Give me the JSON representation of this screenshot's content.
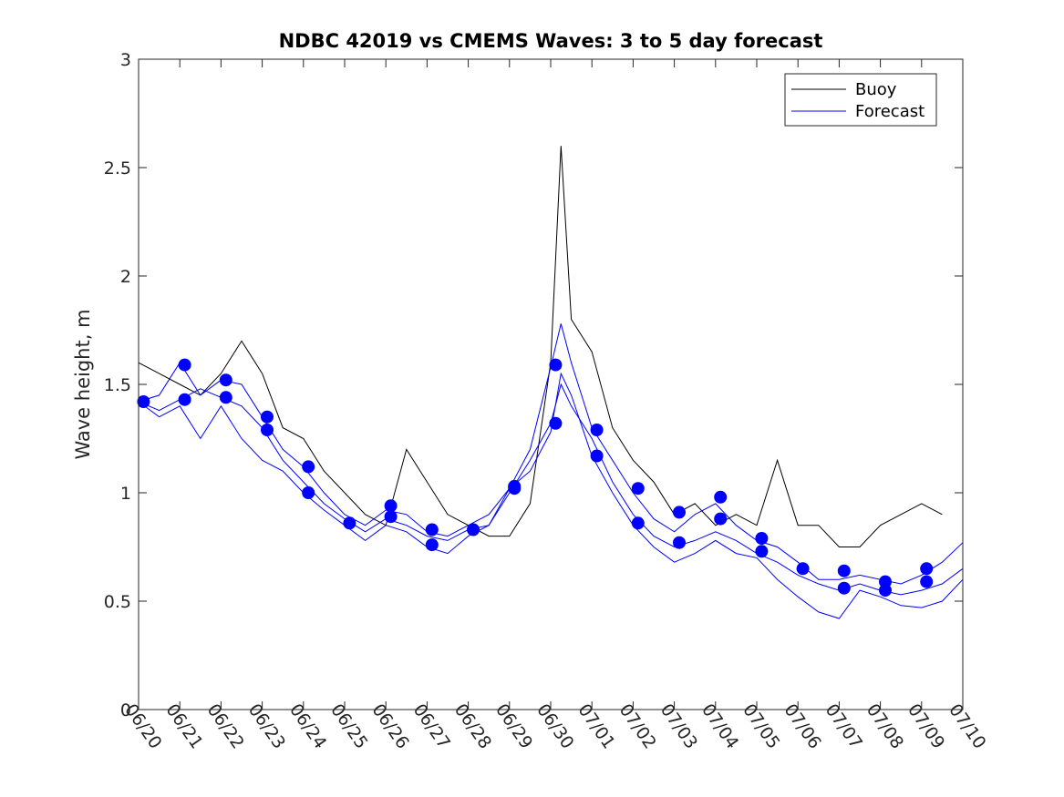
{
  "chart_data": {
    "type": "line",
    "title": "NDBC 42019 vs CMEMS Waves: 3 to 5 day forecast",
    "xlabel": "",
    "ylabel": "Wave height, m",
    "ylim": [
      0,
      3
    ],
    "yticks": [
      0,
      0.5,
      1,
      1.5,
      2,
      2.5,
      3
    ],
    "ytick_labels": [
      "0",
      "0.5",
      "1",
      "1.5",
      "2",
      "2.5",
      "3"
    ],
    "xlim": [
      "06/20",
      "07/10"
    ],
    "xtick_labels": [
      "06/20",
      "06/21",
      "06/22",
      "06/23",
      "06/24",
      "06/25",
      "06/26",
      "06/27",
      "06/28",
      "06/29",
      "06/30",
      "07/01",
      "07/02",
      "07/03",
      "07/04",
      "07/05",
      "07/06",
      "07/07",
      "07/08",
      "07/09",
      "07/10"
    ],
    "legend": {
      "position": "top-right",
      "entries": [
        "Buoy",
        "Forecast"
      ]
    },
    "colors": {
      "buoy": "#000000",
      "forecast": "#0000ff",
      "axis": "#262626"
    },
    "grid": false,
    "series": [
      {
        "name": "Buoy",
        "x": [
          "06/20",
          "06/20 12:00",
          "06/21",
          "06/21 12:00",
          "06/22",
          "06/22 12:00",
          "06/23",
          "06/23 12:00",
          "06/24",
          "06/24 12:00",
          "06/25",
          "06/25 12:00",
          "06/26",
          "06/26 12:00",
          "06/27",
          "06/27 12:00",
          "06/28",
          "06/28 12:00",
          "06/29",
          "06/29 12:00",
          "06/30",
          "06/30 06:00",
          "06/30 12:00",
          "07/01",
          "07/01 12:00",
          "07/02",
          "07/02 12:00",
          "07/03",
          "07/03 12:00",
          "07/04",
          "07/04 12:00",
          "07/05",
          "07/05 12:00",
          "07/06",
          "07/06 12:00",
          "07/07",
          "07/07 12:00",
          "07/08",
          "07/08 12:00",
          "07/09",
          "07/09 12:00"
        ],
        "values": [
          1.6,
          1.55,
          1.5,
          1.45,
          1.55,
          1.7,
          1.55,
          1.3,
          1.25,
          1.1,
          1.0,
          0.9,
          0.85,
          1.2,
          1.05,
          0.9,
          0.85,
          0.8,
          0.8,
          0.95,
          1.6,
          2.6,
          1.8,
          1.65,
          1.3,
          1.15,
          1.05,
          0.9,
          0.95,
          0.85,
          0.9,
          0.85,
          1.15,
          0.85,
          0.85,
          0.75,
          0.75,
          0.85,
          0.9,
          0.95,
          0.9
        ]
      },
      {
        "name": "Forecast",
        "x": [
          "06/20",
          "06/20 12:00",
          "06/21",
          "06/21 12:00",
          "06/22",
          "06/22 12:00",
          "06/23",
          "06/23 12:00",
          "06/24",
          "06/24 12:00",
          "06/25",
          "06/25 12:00",
          "06/26",
          "06/26 12:00",
          "06/27",
          "06/27 12:00",
          "06/28",
          "06/28 12:00",
          "06/29",
          "06/29 12:00",
          "06/30",
          "06/30 06:00",
          "06/30 12:00",
          "07/01",
          "07/01 12:00",
          "07/02",
          "07/02 12:00",
          "07/03",
          "07/03 12:00",
          "07/04",
          "07/04 12:00",
          "07/05",
          "07/05 12:00",
          "07/06",
          "07/06 12:00",
          "07/07",
          "07/07 12:00",
          "07/08",
          "07/08 12:00",
          "07/09",
          "07/09 12:00",
          "07/10"
        ],
        "values": [
          1.42,
          1.38,
          1.43,
          1.48,
          1.44,
          1.4,
          1.3,
          1.15,
          1.05,
          0.95,
          0.88,
          0.82,
          0.88,
          0.85,
          0.8,
          0.78,
          0.83,
          0.85,
          1.0,
          1.15,
          1.32,
          1.5,
          1.4,
          1.25,
          1.05,
          0.9,
          0.8,
          0.75,
          0.78,
          0.82,
          0.78,
          0.72,
          0.68,
          0.62,
          0.58,
          0.55,
          0.58,
          0.55,
          0.53,
          0.55,
          0.58,
          0.65
        ]
      },
      {
        "name": "Forecast",
        "x": [
          "06/20",
          "06/20 12:00",
          "06/21",
          "06/21 12:00",
          "06/22",
          "06/22 12:00",
          "06/23",
          "06/23 12:00",
          "06/24",
          "06/24 12:00",
          "06/25",
          "06/25 12:00",
          "06/26",
          "06/26 12:00",
          "06/27",
          "06/27 12:00",
          "06/28",
          "06/28 12:00",
          "06/29",
          "06/29 12:00",
          "06/30",
          "06/30 06:00",
          "06/30 12:00",
          "07/01",
          "07/01 12:00",
          "07/02",
          "07/02 12:00",
          "07/03",
          "07/03 12:00",
          "07/04",
          "07/04 12:00",
          "07/05",
          "07/05 12:00",
          "07/06",
          "07/06 12:00",
          "07/07",
          "07/07 12:00",
          "07/08",
          "07/08 12:00",
          "07/09",
          "07/09 12:00",
          "07/10"
        ],
        "values": [
          1.42,
          1.45,
          1.6,
          1.45,
          1.52,
          1.5,
          1.35,
          1.2,
          1.12,
          1.0,
          0.9,
          0.85,
          0.92,
          0.9,
          0.82,
          0.8,
          0.85,
          0.9,
          1.02,
          1.2,
          1.58,
          1.78,
          1.6,
          1.3,
          1.15,
          1.0,
          0.88,
          0.82,
          0.9,
          0.95,
          0.85,
          0.78,
          0.75,
          0.68,
          0.6,
          0.6,
          0.62,
          0.6,
          0.58,
          0.62,
          0.68,
          0.77
        ]
      },
      {
        "name": "Forecast",
        "x": [
          "06/20",
          "06/20 12:00",
          "06/21",
          "06/21 12:00",
          "06/22",
          "06/22 12:00",
          "06/23",
          "06/23 12:00",
          "06/24",
          "06/24 12:00",
          "06/25",
          "06/25 12:00",
          "06/26",
          "06/26 12:00",
          "06/27",
          "06/27 12:00",
          "06/28",
          "06/28 12:00",
          "06/29",
          "06/29 12:00",
          "06/30",
          "06/30 06:00",
          "06/30 12:00",
          "07/01",
          "07/01 12:00",
          "07/02",
          "07/02 12:00",
          "07/03",
          "07/03 12:00",
          "07/04",
          "07/04 12:00",
          "07/05",
          "07/05 12:00",
          "07/06",
          "07/06 12:00",
          "07/07",
          "07/07 12:00",
          "07/08",
          "07/08 12:00",
          "07/09",
          "07/09 12:00",
          "07/10"
        ],
        "values": [
          1.42,
          1.35,
          1.4,
          1.25,
          1.4,
          1.25,
          1.15,
          1.1,
          1.0,
          0.92,
          0.85,
          0.78,
          0.85,
          0.82,
          0.75,
          0.72,
          0.8,
          0.85,
          1.02,
          1.1,
          1.28,
          1.55,
          1.45,
          1.17,
          1.0,
          0.85,
          0.75,
          0.68,
          0.72,
          0.78,
          0.72,
          0.7,
          0.6,
          0.52,
          0.45,
          0.42,
          0.55,
          0.52,
          0.48,
          0.47,
          0.5,
          0.6
        ]
      }
    ],
    "forecast_markers": {
      "x": [
        "06/20",
        "06/21",
        "06/21",
        "06/22",
        "06/22",
        "06/23",
        "06/23",
        "06/24",
        "06/24",
        "06/25",
        "06/26",
        "06/26",
        "06/27",
        "06/27",
        "06/28",
        "06/29",
        "06/29",
        "06/30",
        "06/30",
        "07/01",
        "07/01",
        "07/02",
        "07/02",
        "07/03",
        "07/03",
        "07/04",
        "07/04",
        "07/05",
        "07/05",
        "07/06",
        "07/07",
        "07/07",
        "07/08",
        "07/08",
        "07/09",
        "07/09"
      ],
      "values": [
        1.42,
        1.59,
        1.43,
        1.52,
        1.44,
        1.35,
        1.29,
        1.12,
        1.0,
        0.86,
        0.94,
        0.89,
        0.83,
        0.76,
        0.83,
        1.03,
        1.02,
        1.59,
        1.32,
        1.29,
        1.17,
        1.02,
        0.86,
        0.91,
        0.77,
        0.98,
        0.88,
        0.79,
        0.73,
        0.65,
        0.64,
        0.56,
        0.59,
        0.55,
        0.65,
        0.59
      ]
    }
  }
}
